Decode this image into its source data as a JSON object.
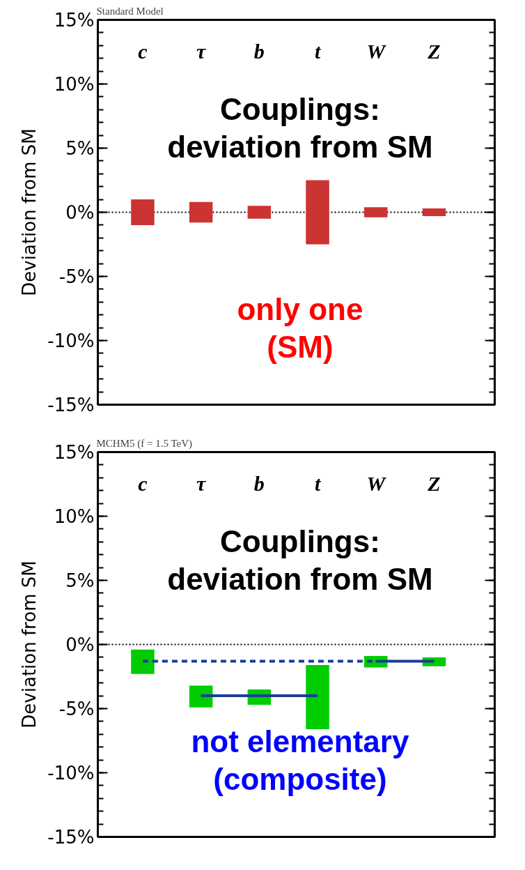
{
  "chart_data": [
    {
      "type": "bar",
      "title": "Standard Model",
      "ylabel": "Deviation from SM",
      "categories": [
        "c",
        "τ",
        "b",
        "t",
        "W",
        "Z"
      ],
      "series": [
        {
          "color": "#cc3333",
          "values": [
            2.0,
            1.6,
            1.0,
            5.0,
            0.8,
            0.6
          ],
          "base": [
            -1.0,
            -0.8,
            -0.5,
            -2.5,
            -0.4,
            -0.3
          ]
        }
      ],
      "ylim": [
        -15,
        15
      ],
      "yticks": [
        {
          "value": -15,
          "label": "-15%"
        },
        {
          "value": -10,
          "label": "-10%"
        },
        {
          "value": -5,
          "label": "-5%"
        },
        {
          "value": 0,
          "label": "0%"
        },
        {
          "value": 5,
          "label": "5%"
        },
        {
          "value": 10,
          "label": "10%"
        },
        {
          "value": 15,
          "label": "15%"
        }
      ],
      "ref_lines": [
        {
          "axis": "y",
          "value": 0,
          "color": "#000000",
          "line_style": "dotted"
        }
      ],
      "annotations": [
        "Couplings:\ndeviation from SM",
        "only one\n(SM)"
      ],
      "grid": false
    },
    {
      "type": "bar",
      "title": "MCHM5 (f = 1.5 TeV)",
      "ylabel": "Deviation from SM",
      "categories": [
        "c",
        "τ",
        "b",
        "t",
        "W",
        "Z"
      ],
      "series": [
        {
          "color": "#00cc00",
          "values": [
            1.9,
            1.7,
            1.2,
            5.0,
            0.9,
            0.7
          ],
          "base": [
            -2.3,
            -4.9,
            -4.7,
            -6.6,
            -1.8,
            -1.7
          ]
        },
        {
          "type": "line",
          "color": "#1a3c9c",
          "line_style": "dashed",
          "values": [
            -1.3,
            -1.3,
            -1.3,
            -1.3,
            -1.3,
            null
          ]
        },
        {
          "type": "line",
          "color": "#1a3c9c",
          "line_style": "solid",
          "values": [
            null,
            null,
            null,
            null,
            -1.3,
            -1.3
          ]
        },
        {
          "type": "line",
          "color": "#1a3c9c",
          "line_style": "solid",
          "values": [
            null,
            -4.0,
            -4.0,
            -4.0,
            null,
            null
          ]
        }
      ],
      "ylim": [
        -15,
        15
      ],
      "yticks": [
        {
          "value": -15,
          "label": "-15%"
        },
        {
          "value": -10,
          "label": "-10%"
        },
        {
          "value": -5,
          "label": "-5%"
        },
        {
          "value": 0,
          "label": "0%"
        },
        {
          "value": 5,
          "label": "5%"
        },
        {
          "value": 10,
          "label": "10%"
        },
        {
          "value": 15,
          "label": "15%"
        }
      ],
      "ref_lines": [
        {
          "axis": "y",
          "value": 0,
          "color": "#000000",
          "line_style": "dotted"
        }
      ],
      "annotations": [
        "Couplings:\ndeviation from SM",
        "not elementary\n(composite)"
      ],
      "grid": false
    }
  ]
}
